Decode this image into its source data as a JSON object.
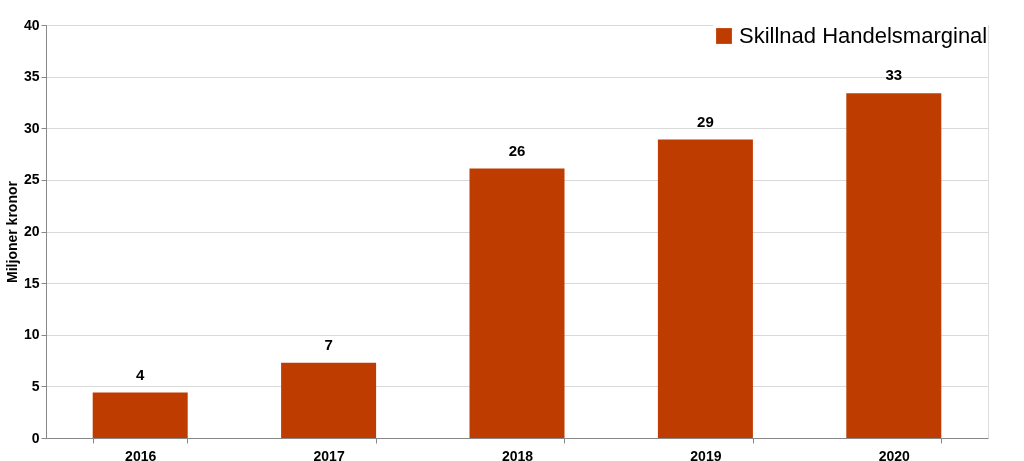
{
  "chart_data": {
    "type": "bar",
    "ylabel": "Miljoner kronor",
    "categories": [
      "2016",
      "2017",
      "2018",
      "2019",
      "2020"
    ],
    "series": [
      {
        "name": "Skillnad Handelsmarginal",
        "color": "#bf3c00",
        "values": [
          4.4,
          7.3,
          26.1,
          28.9,
          33.4
        ],
        "value_labels": [
          "4",
          "7",
          "26",
          "29",
          "33"
        ]
      }
    ],
    "ylim": [
      0,
      40
    ],
    "yticks": [
      0,
      5,
      10,
      15,
      20,
      25,
      30,
      35,
      40
    ],
    "grid": "y",
    "legend": "top right"
  }
}
